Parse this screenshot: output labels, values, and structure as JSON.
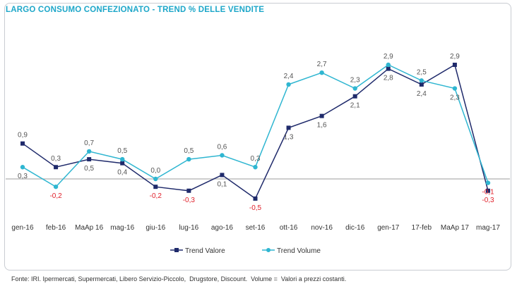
{
  "title": "LARGO CONSUMO CONFEZIONATO - TREND % DELLE VENDITE",
  "source_note": "Fonte: IRI. Ipermercati, Supermercati, Libero Servizio-Piccolo,  Drugstore, Discount.  Volume =  Valori a prezzi costanti.",
  "colors": {
    "valore": "#1f2a6b",
    "volume": "#2fb6d1",
    "positive_label": "#555555",
    "negative_label": "#e0202a",
    "zero_line": "#bdbdbd",
    "title": "#1ea7c9"
  },
  "chart_data": {
    "type": "line",
    "title": "LARGO CONSUMO CONFEZIONATO - TREND % DELLE VENDITE",
    "categories": [
      "gen-16",
      "feb-16",
      "MaAp 16",
      "mag-16",
      "giu-16",
      "lug-16",
      "ago-16",
      "set-16",
      "ott-16",
      "nov-16",
      "dic-16",
      "gen-17",
      "17-feb",
      "MaAp 17",
      "mag-17"
    ],
    "series": [
      {
        "name": "Trend Valore",
        "values": [
          0.9,
          0.3,
          0.5,
          0.4,
          -0.2,
          -0.3,
          0.1,
          -0.5,
          1.3,
          1.6,
          2.1,
          2.8,
          2.4,
          2.9,
          -0.3
        ],
        "labels": [
          "0,9",
          "0,3",
          "0,5",
          "0,4",
          "-0,2",
          "-0,3",
          "0,1",
          "-0,5",
          "1,3",
          "1,6",
          "2,1",
          "2,8",
          "2,4",
          "2,9",
          "-0,3"
        ]
      },
      {
        "name": "Trend Volume",
        "values": [
          0.3,
          -0.2,
          0.7,
          0.5,
          0.0,
          0.5,
          0.6,
          0.3,
          2.4,
          2.7,
          2.3,
          2.9,
          2.5,
          2.3,
          -0.1
        ],
        "labels": [
          "0,3",
          "-0,2",
          "0,7",
          "0,5",
          "0,0",
          "0,5",
          "0,6",
          "0,3",
          "2,4",
          "2,7",
          "2,3",
          "2,9",
          "2,5",
          "2,3",
          "-0,1"
        ]
      }
    ],
    "ylim": [
      -0.5,
      2.9
    ],
    "grid": false,
    "legend": "bottom-center"
  }
}
